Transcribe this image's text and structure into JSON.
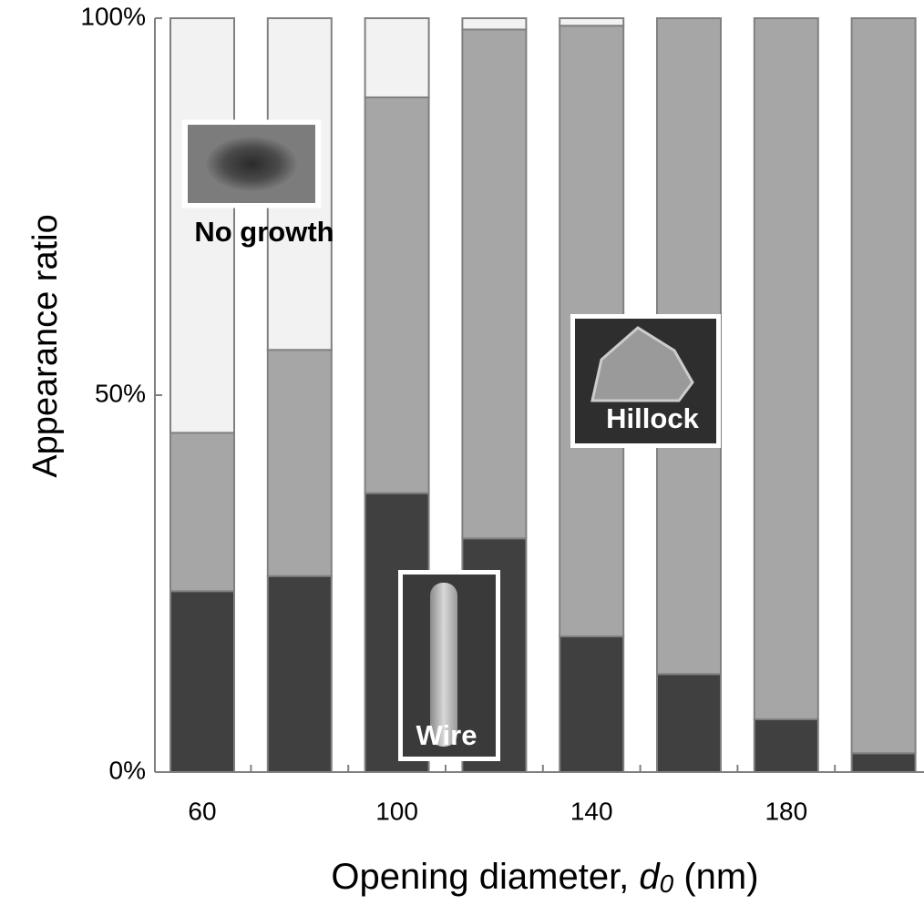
{
  "chart_data": {
    "type": "stacked-bar",
    "categories": [
      "60",
      null,
      "100",
      null,
      "140",
      null,
      "180",
      null
    ],
    "series": [
      {
        "name": "Wire",
        "color": "#404040",
        "values": [
          24,
          26,
          37,
          31,
          18,
          13,
          7,
          2.5
        ]
      },
      {
        "name": "Hillock",
        "color": "#a6a6a6",
        "values": [
          21,
          30,
          52.5,
          67.5,
          81,
          87,
          93,
          97.5
        ]
      },
      {
        "name": "No growth",
        "color": "#f2f2f2",
        "values": [
          55,
          44,
          10.5,
          1.5,
          1,
          0,
          0,
          0
        ]
      }
    ],
    "ylim": [
      0,
      100
    ],
    "yticks": [
      {
        "value": 0,
        "label": "0%"
      },
      {
        "value": 50,
        "label": "50%"
      },
      {
        "value": 100,
        "label": "100%"
      }
    ],
    "ylabel": "Appearance ratio",
    "xlabel": [
      "Opening diameter, ",
      "d",
      "0",
      " (nm)"
    ],
    "bar_edge_color": "#808080"
  }
}
